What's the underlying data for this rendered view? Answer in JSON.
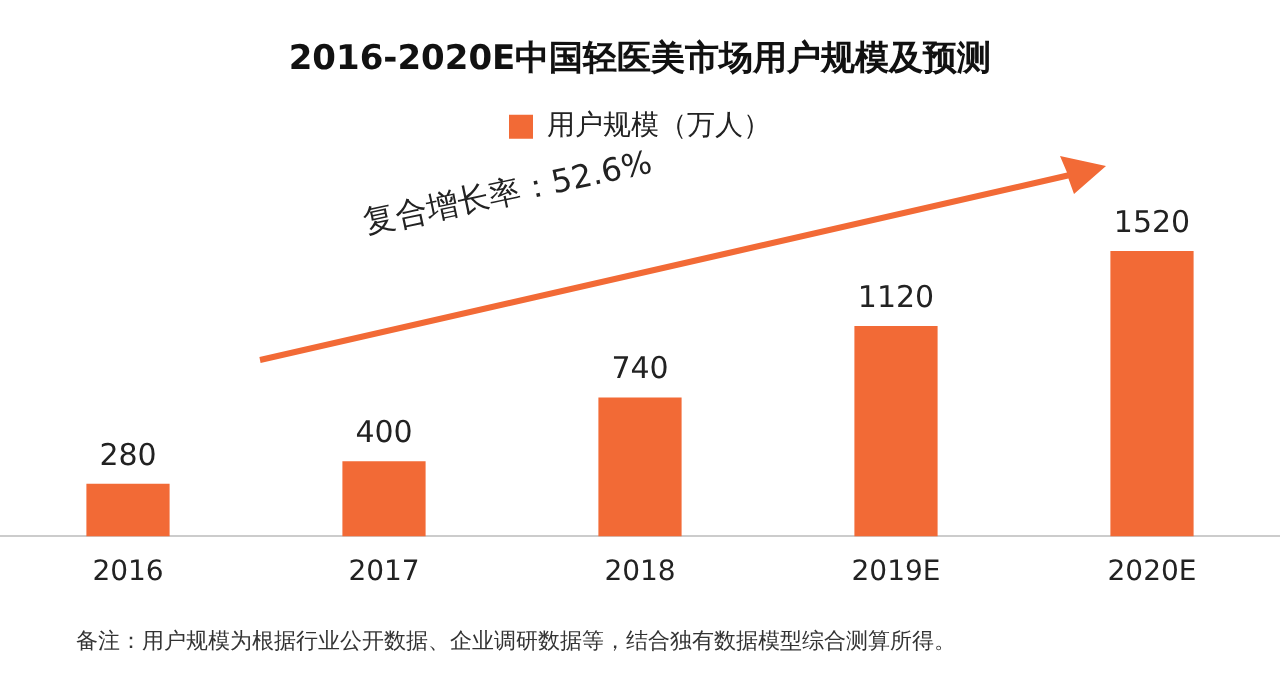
{
  "chart_data": {
    "type": "bar",
    "title": "2016-2020E中国轻医美市场用户规模及预测",
    "categories": [
      "2016",
      "2017",
      "2018",
      "2019E",
      "2020E"
    ],
    "series": [
      {
        "name": "用户规模（万人）",
        "color": "#f26a36",
        "values": [
          280,
          400,
          740,
          1120,
          1520
        ]
      }
    ],
    "data_labels": true,
    "legend": "top",
    "grid": false,
    "annotations": [
      "复合增长率：52.6%",
      "备注：用户规模为根据行业公开数据、企业调研数据等，结合独有数据模型综合测算所得。"
    ]
  }
}
